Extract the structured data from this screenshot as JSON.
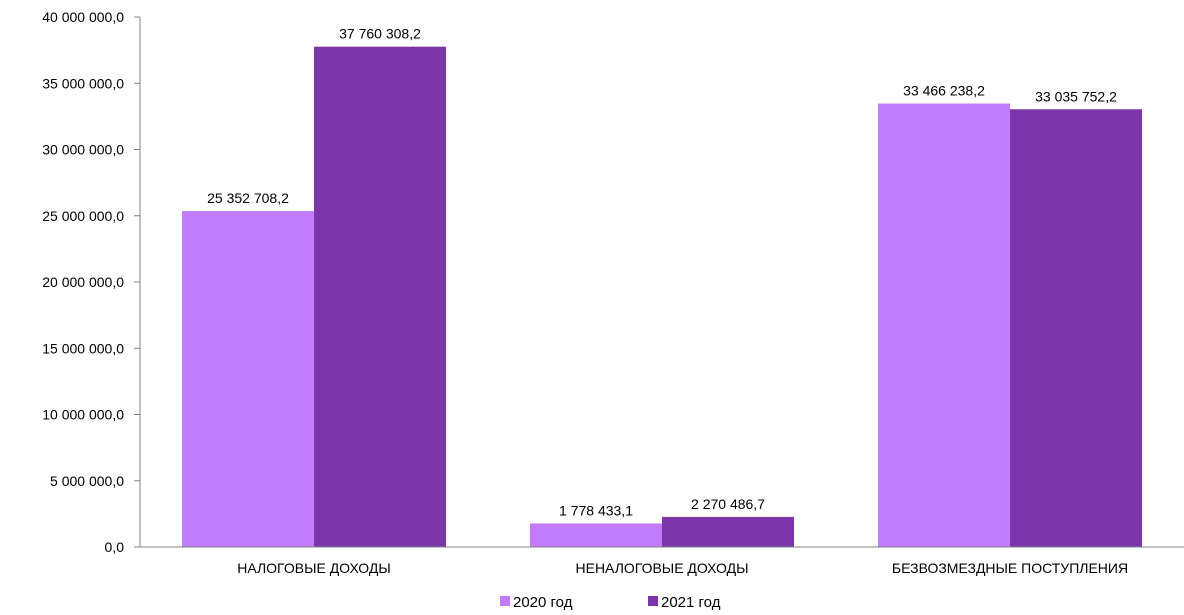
{
  "chart_data": {
    "type": "bar",
    "categories": [
      "НАЛОГОВЫЕ ДОХОДЫ",
      "НЕНАЛОГОВЫЕ ДОХОДЫ",
      "БЕЗВОЗМЕЗДНЫЕ ПОСТУПЛЕНИЯ"
    ],
    "series": [
      {
        "name": "2020 год",
        "color": "#c27bff",
        "values": [
          25352708.2,
          1778433.1,
          33466238.2
        ],
        "labels": [
          "25 352 708,2",
          "1 778 433,1",
          "33 466 238,2"
        ]
      },
      {
        "name": "2021 год",
        "color": "#7b35a8",
        "values": [
          37760308.2,
          2270486.7,
          33035752.2
        ],
        "labels": [
          "37 760 308,2",
          "2 270 486,7",
          "33 035 752,2"
        ]
      }
    ],
    "ylim": [
      0,
      40000000
    ],
    "yticks": [
      {
        "value": 0,
        "label": "0,0"
      },
      {
        "value": 5000000,
        "label": "5 000 000,0"
      },
      {
        "value": 10000000,
        "label": "10 000 000,0"
      },
      {
        "value": 15000000,
        "label": "15 000 000,0"
      },
      {
        "value": 20000000,
        "label": "20 000 000,0"
      },
      {
        "value": 25000000,
        "label": "25 000 000,0"
      },
      {
        "value": 30000000,
        "label": "30 000 000,0"
      },
      {
        "value": 35000000,
        "label": "35 000 000,0"
      },
      {
        "value": 40000000,
        "label": "40 000 000,0"
      }
    ],
    "grid": false,
    "legend_position": "bottom"
  }
}
